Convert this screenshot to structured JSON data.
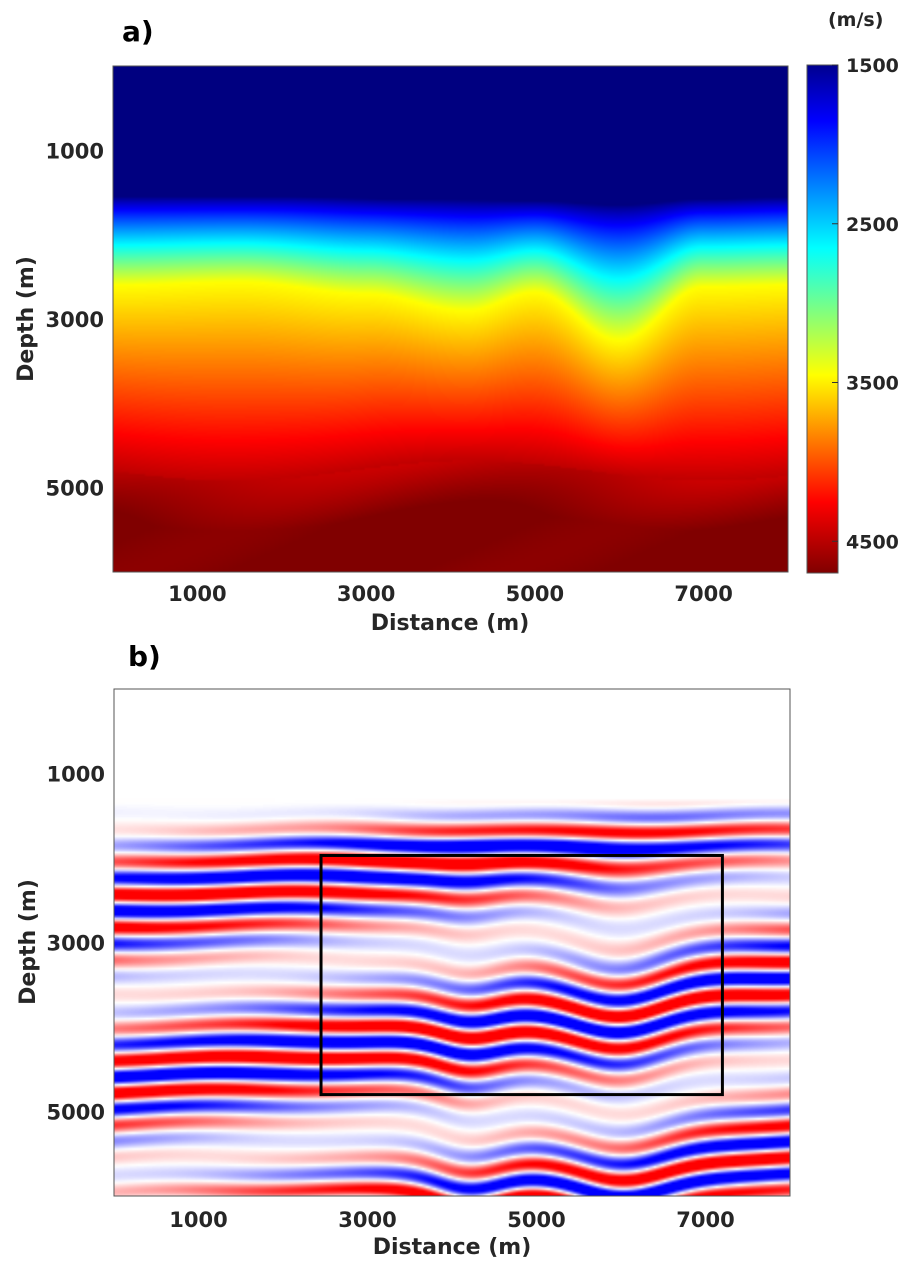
{
  "chart_data": [
    {
      "type": "heatmap",
      "panel_label": "a)",
      "xlabel": "Distance (m)",
      "ylabel": "Depth (m)",
      "xlim": [
        0,
        8000
      ],
      "ylim": [
        6000,
        0
      ],
      "xticks": [
        1000,
        3000,
        5000,
        7000
      ],
      "yticks": [
        1000,
        3000,
        5000
      ],
      "xtick_labels": [
        "1000",
        "3000",
        "5000",
        "7000"
      ],
      "ytick_labels": [
        "1000",
        "3000",
        "5000"
      ],
      "colormap": "jet",
      "colorbar": {
        "unit_label": "(m/s)",
        "range": [
          1500,
          4700
        ],
        "ticks": [
          1500,
          2500,
          3500,
          4500
        ],
        "tick_labels": [
          "1500",
          "2500",
          "3500",
          "4500"
        ]
      },
      "velocity_model": {
        "water_velocity": 1500,
        "transition_top_depth": [
          {
            "x": 0,
            "depth": 1550
          },
          {
            "x": 2000,
            "depth": 1550
          },
          {
            "x": 3500,
            "depth": 1580
          },
          {
            "x": 5000,
            "depth": 1600
          },
          {
            "x": 6000,
            "depth": 1650
          },
          {
            "x": 7000,
            "depth": 1580
          },
          {
            "x": 8000,
            "depth": 1560
          }
        ],
        "velocity_3500_depth": [
          {
            "x": 0,
            "depth": 2600
          },
          {
            "x": 1500,
            "depth": 2560
          },
          {
            "x": 3000,
            "depth": 2700
          },
          {
            "x": 4200,
            "depth": 2900
          },
          {
            "x": 5000,
            "depth": 2680
          },
          {
            "x": 6000,
            "depth": 3250
          },
          {
            "x": 7000,
            "depth": 2620
          },
          {
            "x": 8000,
            "depth": 2600
          }
        ],
        "velocity_4500_depth": 4800,
        "max_velocity": 4700
      }
    },
    {
      "type": "heatmap",
      "panel_label": "b)",
      "xlabel": "Distance (m)",
      "ylabel": "Depth (m)",
      "xlim": [
        0,
        8000
      ],
      "ylim": [
        6000,
        0
      ],
      "xticks": [
        1000,
        3000,
        5000,
        7000
      ],
      "yticks": [
        1000,
        3000,
        5000
      ],
      "xtick_labels": [
        "1000",
        "3000",
        "5000",
        "7000"
      ],
      "ytick_labels": [
        "1000",
        "3000",
        "5000"
      ],
      "colormap": "bwr",
      "image_start_depth": 1300,
      "annotation_box": {
        "x0": 2450,
        "x1": 7200,
        "y0": 1970,
        "y1": 4800
      }
    }
  ]
}
